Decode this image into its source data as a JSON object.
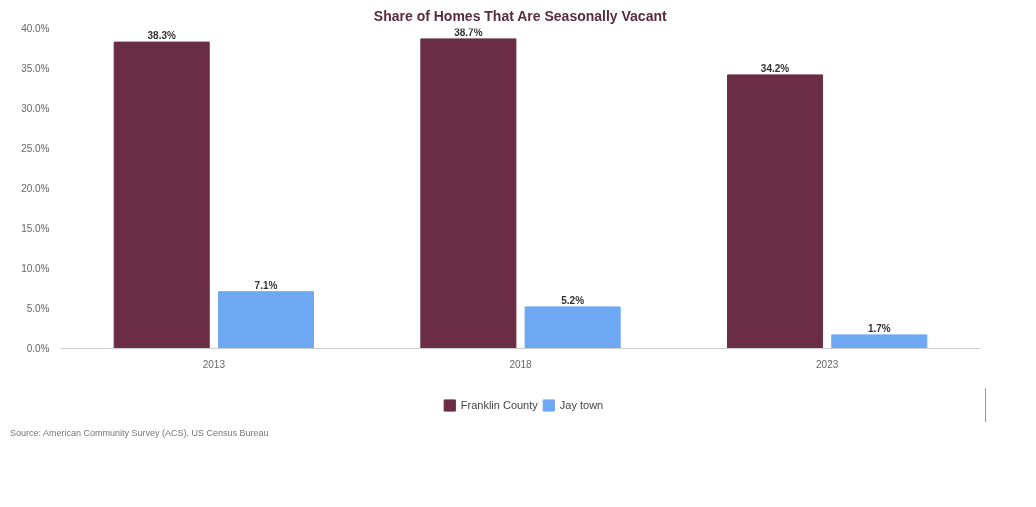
{
  "chart_data": {
    "type": "bar",
    "title": "Share of Homes That Are Seasonally Vacant",
    "categories": [
      "2013",
      "2018",
      "2023"
    ],
    "series": [
      {
        "name": "Franklin County",
        "color": "#6a2d45",
        "values": [
          38.3,
          38.7,
          34.2
        ],
        "value_labels": [
          "38.3%",
          "38.7%",
          "34.2%"
        ]
      },
      {
        "name": "Jay town",
        "color": "#6ea8f2",
        "values": [
          7.1,
          5.2,
          1.7
        ],
        "value_labels": [
          "7.1%",
          "5.2%",
          "1.7%"
        ]
      }
    ],
    "ylim": [
      0,
      40
    ],
    "yticks": [
      {
        "value": 0,
        "label": "0.0%"
      },
      {
        "value": 5,
        "label": "5.0%"
      },
      {
        "value": 10,
        "label": "10.0%"
      },
      {
        "value": 15,
        "label": "15.0%"
      },
      {
        "value": 20,
        "label": "20.0%"
      },
      {
        "value": 25,
        "label": "25.0%"
      },
      {
        "value": 30,
        "label": "30.0%"
      },
      {
        "value": 35,
        "label": "35.0%"
      },
      {
        "value": 40,
        "label": "40.0%"
      }
    ],
    "grid": false,
    "legend": "bottom",
    "annotations": [
      "Source: American Community Survey (ACS), US Census Bureau"
    ]
  }
}
